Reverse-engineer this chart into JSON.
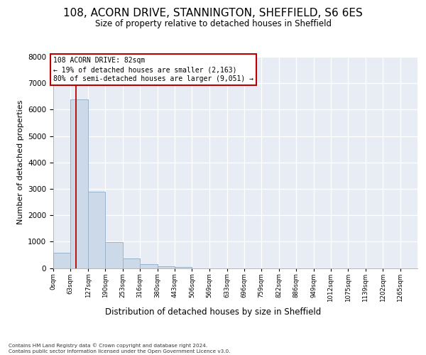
{
  "title_line1": "108, ACORN DRIVE, STANNINGTON, SHEFFIELD, S6 6ES",
  "title_line2": "Size of property relative to detached houses in Sheffield",
  "xlabel": "Distribution of detached houses by size in Sheffield",
  "ylabel": "Number of detached properties",
  "bar_labels": [
    "0sqm",
    "63sqm",
    "127sqm",
    "190sqm",
    "253sqm",
    "316sqm",
    "380sqm",
    "443sqm",
    "506sqm",
    "569sqm",
    "633sqm",
    "696sqm",
    "759sqm",
    "822sqm",
    "886sqm",
    "949sqm",
    "1012sqm",
    "1075sqm",
    "1139sqm",
    "1202sqm",
    "1265sqm"
  ],
  "bar_values": [
    580,
    6400,
    2900,
    970,
    350,
    155,
    80,
    50,
    0,
    0,
    0,
    0,
    0,
    0,
    0,
    0,
    0,
    0,
    0,
    0,
    0
  ],
  "bar_color": "#ccd9e8",
  "bar_edgecolor": "#9ab4cc",
  "vline_x": 82,
  "vline_color": "#bb0000",
  "annotation_line1": "108 ACORN DRIVE: 82sqm",
  "annotation_line2": "← 19% of detached houses are smaller (2,163)",
  "annotation_line3": "80% of semi-detached houses are larger (9,051) →",
  "annotation_box_edgecolor": "#bb0000",
  "ylim_max": 8000,
  "yticks": [
    0,
    1000,
    2000,
    3000,
    4000,
    5000,
    6000,
    7000,
    8000
  ],
  "plot_bg_color": "#e8edf5",
  "grid_color": "#ffffff",
  "footnote_line1": "Contains HM Land Registry data © Crown copyright and database right 2024.",
  "footnote_line2": "Contains public sector information licensed under the Open Government Licence v3.0.",
  "bin_edges": [
    0,
    63,
    127,
    190,
    253,
    316,
    380,
    443,
    506,
    569,
    633,
    696,
    759,
    822,
    886,
    949,
    1012,
    1075,
    1139,
    1202,
    1265,
    1328
  ]
}
